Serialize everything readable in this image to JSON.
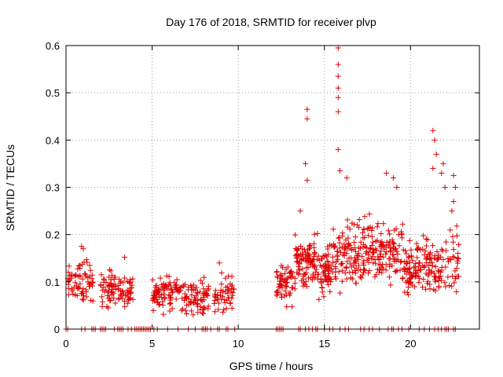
{
  "chart_data": {
    "type": "scatter",
    "title": "Day 176 of 2018, SRMTID for receiver plvp",
    "xlabel": "GPS time / hours",
    "ylabel": "SRMTID / TECUs",
    "xlim": [
      0,
      24
    ],
    "ylim": [
      0,
      0.6
    ],
    "xticks": [
      0,
      5,
      10,
      15,
      20
    ],
    "yticks": [
      0,
      0.1,
      0.2,
      0.3,
      0.4,
      0.5,
      0.6
    ],
    "xtick_labels": [
      "0",
      "5",
      "10",
      "15",
      "20"
    ],
    "ytick_labels": [
      "0",
      "0.1",
      "0.2",
      "0.3",
      "0.4",
      "0.5",
      "0.6"
    ],
    "grid": true,
    "marker": "+",
    "marker_color": "#e00000",
    "series": [
      {
        "name": "SRMTID",
        "clusters": [
          {
            "x_range": [
              0.0,
              1.6
            ],
            "y_center": 0.095,
            "spread": 0.04,
            "count": 70
          },
          {
            "x_range": [
              2.0,
              2.9
            ],
            "y_center": 0.085,
            "spread": 0.035,
            "count": 50
          },
          {
            "x_range": [
              3.0,
              3.9
            ],
            "y_center": 0.08,
            "spread": 0.035,
            "count": 45
          },
          {
            "x_range": [
              5.0,
              5.6
            ],
            "y_center": 0.07,
            "spread": 0.03,
            "count": 40
          },
          {
            "x_range": [
              5.6,
              8.3
            ],
            "y_center": 0.07,
            "spread": 0.035,
            "count": 130
          },
          {
            "x_range": [
              8.6,
              9.8
            ],
            "y_center": 0.075,
            "spread": 0.035,
            "count": 50
          },
          {
            "x_range": [
              12.2,
              13.2
            ],
            "y_center": 0.1,
            "spread": 0.04,
            "count": 60
          },
          {
            "x_range": [
              13.2,
              14.6
            ],
            "y_center": 0.14,
            "spread": 0.05,
            "count": 100
          },
          {
            "x_range": [
              14.6,
              15.4
            ],
            "y_center": 0.12,
            "spread": 0.05,
            "count": 60
          },
          {
            "x_range": [
              15.4,
              19.6
            ],
            "y_center": 0.16,
            "spread": 0.06,
            "count": 250
          },
          {
            "x_range": [
              19.6,
              21.8
            ],
            "y_center": 0.13,
            "spread": 0.05,
            "count": 140
          },
          {
            "x_range": [
              21.8,
              22.8
            ],
            "y_center": 0.15,
            "spread": 0.07,
            "count": 40
          }
        ],
        "outliers": [
          {
            "x": 0.9,
            "y": 0.175
          },
          {
            "x": 1.0,
            "y": 0.17
          },
          {
            "x": 3.4,
            "y": 0.152
          },
          {
            "x": 8.9,
            "y": 0.14
          },
          {
            "x": 13.9,
            "y": 0.35
          },
          {
            "x": 14.0,
            "y": 0.465
          },
          {
            "x": 14.0,
            "y": 0.445
          },
          {
            "x": 14.0,
            "y": 0.315
          },
          {
            "x": 13.6,
            "y": 0.25
          },
          {
            "x": 15.8,
            "y": 0.595
          },
          {
            "x": 15.8,
            "y": 0.56
          },
          {
            "x": 15.8,
            "y": 0.535
          },
          {
            "x": 15.8,
            "y": 0.51
          },
          {
            "x": 15.8,
            "y": 0.49
          },
          {
            "x": 15.8,
            "y": 0.46
          },
          {
            "x": 15.8,
            "y": 0.38
          },
          {
            "x": 15.9,
            "y": 0.335
          },
          {
            "x": 16.3,
            "y": 0.32
          },
          {
            "x": 18.6,
            "y": 0.33
          },
          {
            "x": 19.0,
            "y": 0.32
          },
          {
            "x": 19.2,
            "y": 0.3
          },
          {
            "x": 21.3,
            "y": 0.42
          },
          {
            "x": 21.4,
            "y": 0.4
          },
          {
            "x": 21.5,
            "y": 0.37
          },
          {
            "x": 21.3,
            "y": 0.34
          },
          {
            "x": 21.9,
            "y": 0.35
          },
          {
            "x": 21.8,
            "y": 0.33
          },
          {
            "x": 22.0,
            "y": 0.3
          },
          {
            "x": 22.5,
            "y": 0.325
          },
          {
            "x": 22.6,
            "y": 0.3
          },
          {
            "x": 22.5,
            "y": 0.27
          },
          {
            "x": 22.4,
            "y": 0.25
          }
        ],
        "zero_points_x": [
          0.0,
          0.1,
          0.9,
          1.1,
          1.5,
          1.6,
          1.7,
          2.0,
          2.1,
          2.2,
          2.3,
          2.8,
          3.0,
          3.1,
          3.2,
          3.3,
          3.6,
          3.8,
          4.0,
          4.1,
          4.2,
          4.3,
          4.4,
          4.5,
          4.6,
          4.7,
          4.8,
          4.9,
          5.1,
          5.3,
          5.9,
          6.5,
          7.1,
          7.5,
          7.9,
          8.0,
          8.1,
          8.2,
          8.4,
          8.8,
          8.9,
          9.3,
          9.4,
          9.8,
          12.2,
          12.3,
          12.4,
          12.5,
          12.6,
          13.5,
          13.6,
          13.9,
          14.1,
          14.3,
          14.5,
          14.6,
          15.0,
          15.3,
          15.5,
          15.9,
          16.2,
          16.4,
          17.1,
          17.3,
          17.6,
          17.8,
          18.2,
          18.7,
          18.9,
          19.0,
          19.3,
          19.5,
          19.9,
          20.5,
          20.8,
          21.1,
          21.4,
          21.6,
          21.8,
          22.0,
          22.1,
          22.2,
          22.5,
          22.6
        ]
      }
    ]
  }
}
